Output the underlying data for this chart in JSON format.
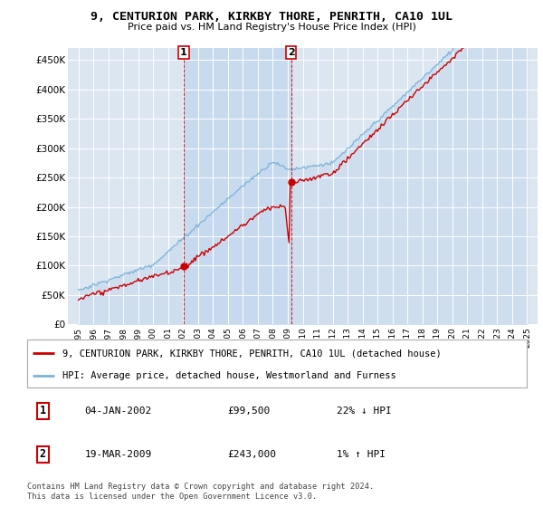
{
  "title": "9, CENTURION PARK, KIRKBY THORE, PENRITH, CA10 1UL",
  "subtitle": "Price paid vs. HM Land Registry's House Price Index (HPI)",
  "ylabel_vals": [
    "£0",
    "£50K",
    "£100K",
    "£150K",
    "£200K",
    "£250K",
    "£300K",
    "£350K",
    "£400K",
    "£450K"
  ],
  "y_ticks": [
    0,
    50000,
    100000,
    150000,
    200000,
    250000,
    300000,
    350000,
    400000,
    450000
  ],
  "ylim": [
    0,
    470000
  ],
  "background_color": "#ffffff",
  "plot_bg_color": "#dce6f1",
  "grid_color": "#ffffff",
  "hpi_color": "#7ab4d8",
  "hpi_fill_color": "#c5d9ee",
  "price_color": "#cc0000",
  "shade_color": "#c5d9ee",
  "purchase1_date": 2002.04,
  "purchase1_price": 99500,
  "purchase2_date": 2009.22,
  "purchase2_price": 243000,
  "legend_house": "9, CENTURION PARK, KIRKBY THORE, PENRITH, CA10 1UL (detached house)",
  "legend_hpi": "HPI: Average price, detached house, Westmorland and Furness",
  "annotation1_date": "04-JAN-2002",
  "annotation1_price": "£99,500",
  "annotation1_hpi": "22% ↓ HPI",
  "annotation2_date": "19-MAR-2009",
  "annotation2_price": "£243,000",
  "annotation2_hpi": "1% ↑ HPI",
  "footnote": "Contains HM Land Registry data © Crown copyright and database right 2024.\nThis data is licensed under the Open Government Licence v3.0."
}
